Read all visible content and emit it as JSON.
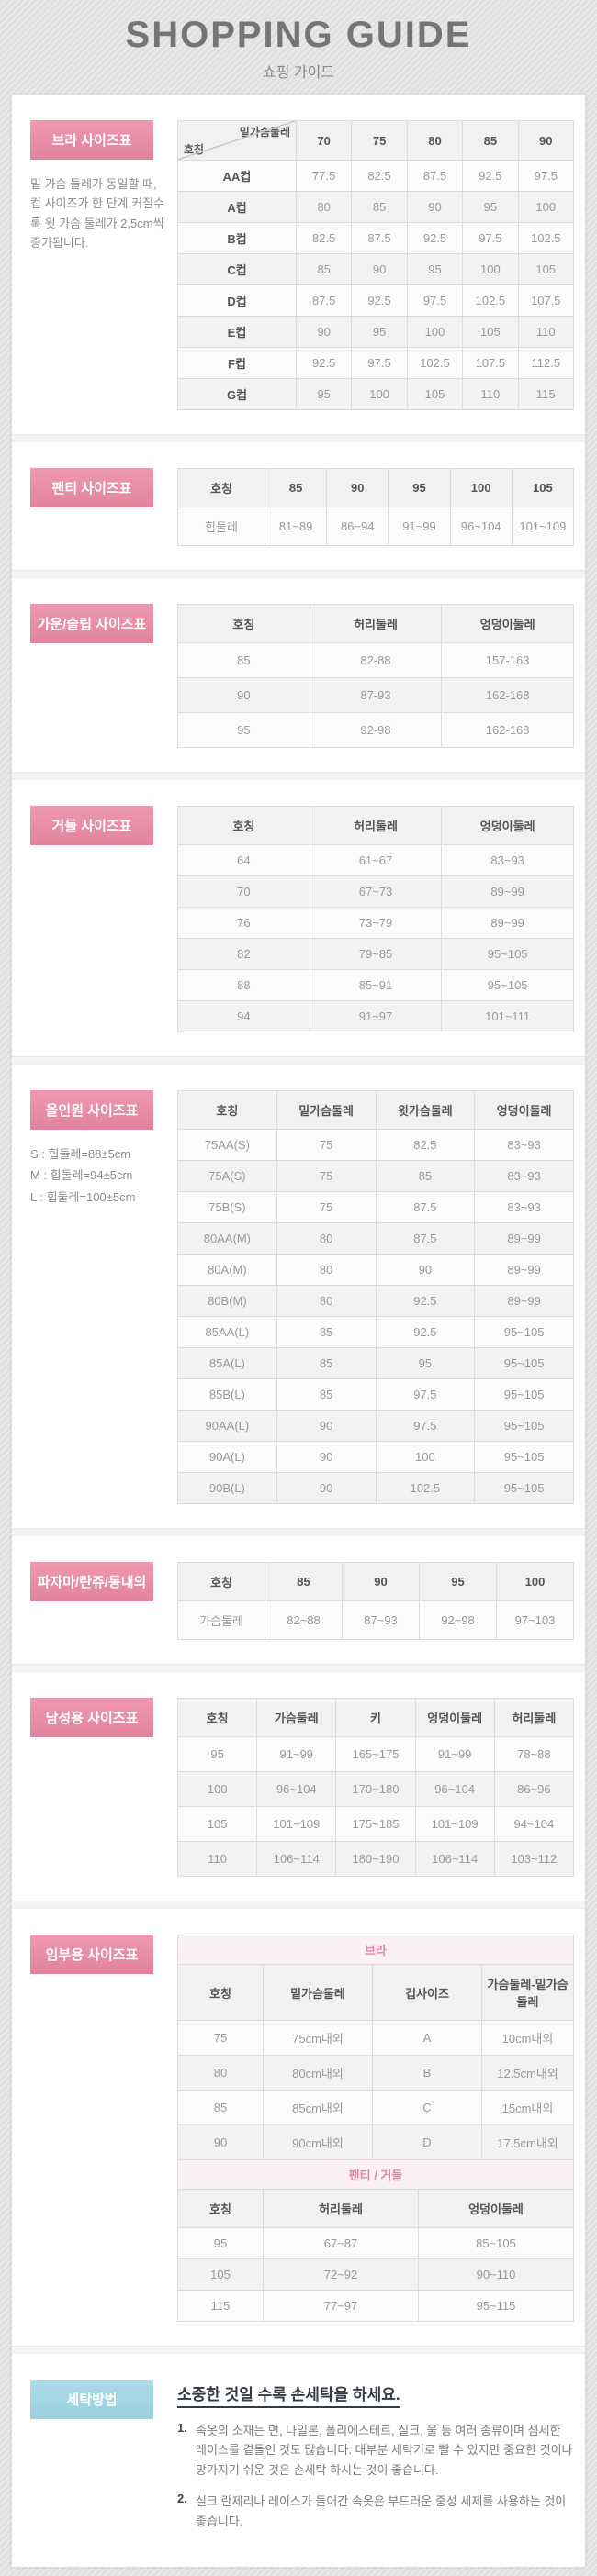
{
  "theme": {
    "accent_pink": "#e2829d",
    "accent_blue": "#9bd0df",
    "header_text": "#757575",
    "table_header_text": "#555555",
    "table_value_text": "#9a9a9a"
  },
  "header": {
    "title": "SHOPPING GUIDE",
    "subtitle": "쇼핑 가이드"
  },
  "sections": {
    "bra": {
      "label": "브라 사이즈표",
      "note": "밑 가슴 둘레가 동일할 때, 컵 사이즈가 한 단계 커질수록 윗 가슴 둘레가 2,5cm씩 증가됩니다.",
      "corner_top": "밑가슴둘레",
      "corner_bottom": "호칭",
      "columns": [
        "70",
        "75",
        "80",
        "85",
        "90"
      ],
      "rows": [
        [
          "AA컵",
          "77.5",
          "82.5",
          "87.5",
          "92.5",
          "97.5"
        ],
        [
          "A컵",
          "80",
          "85",
          "90",
          "95",
          "100"
        ],
        [
          "B컵",
          "82.5",
          "87.5",
          "92.5",
          "97.5",
          "102.5"
        ],
        [
          "C컵",
          "85",
          "90",
          "95",
          "100",
          "105"
        ],
        [
          "D컵",
          "87.5",
          "92.5",
          "97.5",
          "102.5",
          "107.5"
        ],
        [
          "E컵",
          "90",
          "95",
          "100",
          "105",
          "110"
        ],
        [
          "F컵",
          "92.5",
          "97.5",
          "102.5",
          "107.5",
          "112.5"
        ],
        [
          "G컵",
          "95",
          "100",
          "105",
          "110",
          "115"
        ]
      ]
    },
    "panty": {
      "label": "팬티 사이즈표",
      "headers": [
        "호칭",
        "85",
        "90",
        "95",
        "100",
        "105"
      ],
      "rows": [
        [
          "힙둘레",
          "81~89",
          "86~94",
          "91~99",
          "96~104",
          "101~109"
        ]
      ]
    },
    "gown": {
      "label": "가운/슬립 사이즈표",
      "headers": [
        "호칭",
        "허리둘레",
        "엉덩이둘레"
      ],
      "rows": [
        [
          "85",
          "82-88",
          "157-163"
        ],
        [
          "90",
          "87-93",
          "162-168"
        ],
        [
          "95",
          "92-98",
          "162-168"
        ]
      ]
    },
    "girdle": {
      "label": "거들 사이즈표",
      "headers": [
        "호칭",
        "허리둘레",
        "엉덩이둘레"
      ],
      "rows": [
        [
          "64",
          "61~67",
          "83~93"
        ],
        [
          "70",
          "67~73",
          "89~99"
        ],
        [
          "76",
          "73~79",
          "89~99"
        ],
        [
          "82",
          "79~85",
          "95~105"
        ],
        [
          "88",
          "85~91",
          "95~105"
        ],
        [
          "94",
          "91~97",
          "101~111"
        ]
      ]
    },
    "allinone": {
      "label": "올인원 사이즈표",
      "notes": [
        "S : 힙둘레=88±5cm",
        "M : 힙둘레=94±5cm",
        "L : 힙둘레=100±5cm"
      ],
      "headers": [
        "호칭",
        "밑가슴둘레",
        "윗가슴둘레",
        "엉덩이둘레"
      ],
      "rows": [
        [
          "75AA(S)",
          "75",
          "82.5",
          "83~93"
        ],
        [
          "75A(S)",
          "75",
          "85",
          "83~93"
        ],
        [
          "75B(S)",
          "75",
          "87.5",
          "83~93"
        ],
        [
          "80AA(M)",
          "80",
          "87.5",
          "89~99"
        ],
        [
          "80A(M)",
          "80",
          "90",
          "89~99"
        ],
        [
          "80B(M)",
          "80",
          "92.5",
          "89~99"
        ],
        [
          "85AA(L)",
          "85",
          "92.5",
          "95~105"
        ],
        [
          "85A(L)",
          "85",
          "95",
          "95~105"
        ],
        [
          "85B(L)",
          "85",
          "97.5",
          "95~105"
        ],
        [
          "90AA(L)",
          "90",
          "97.5",
          "95~105"
        ],
        [
          "90A(L)",
          "90",
          "100",
          "95~105"
        ],
        [
          "90B(L)",
          "90",
          "102.5",
          "95~105"
        ]
      ]
    },
    "pajama": {
      "label": "파자마/란쥬/동내의",
      "headers": [
        "호칭",
        "85",
        "90",
        "95",
        "100"
      ],
      "rows": [
        [
          "가슴둘레",
          "82~88",
          "87~93",
          "92~98",
          "97~103"
        ]
      ]
    },
    "mens": {
      "label": "남성용 사이즈표",
      "headers": [
        "호칭",
        "가슴둘레",
        "키",
        "엉덩이둘레",
        "허리둘레"
      ],
      "rows": [
        [
          "95",
          "91~99",
          "165~175",
          "91~99",
          "78~88"
        ],
        [
          "100",
          "96~104",
          "170~180",
          "96~104",
          "86~96"
        ],
        [
          "105",
          "101~109",
          "175~185",
          "101~109",
          "94~104"
        ],
        [
          "110",
          "106~114",
          "180~190",
          "106~114",
          "103~112"
        ]
      ]
    },
    "maternity": {
      "label": "임부용 사이즈표",
      "group1_title": "브라",
      "bra_headers": [
        "호칭",
        "밑가슴둘레",
        "컵사이즈",
        "가슴둘레-밑가슴둘레"
      ],
      "bra_rows": [
        [
          "75",
          "75cm내외",
          "A",
          "10cm내외"
        ],
        [
          "80",
          "80cm내외",
          "B",
          "12.5cm내외"
        ],
        [
          "85",
          "85cm내외",
          "C",
          "15cm내외"
        ],
        [
          "90",
          "90cm내외",
          "D",
          "17.5cm내외"
        ]
      ],
      "group2_title": "팬티 / 거들",
      "pg_headers": [
        "호칭",
        "허리둘레",
        "엉덩이둘레"
      ],
      "pg_rows": [
        [
          "95",
          "67~87",
          "85~105"
        ],
        [
          "105",
          "72~92",
          "90~110"
        ],
        [
          "115",
          "77~97",
          "95~115"
        ]
      ]
    },
    "wash": {
      "label": "세탁방법",
      "title": "소중한 것일 수록 손세탁을 하세요.",
      "items": [
        {
          "num": "1.",
          "text": "속옷의 소재는 면, 나일론, 폴리에스테르, 실크, 울 등 여러 종류이며 섬세한 레이스를 곁들인 것도 많습니다. 대부분 세탁기로 빨 수 있지만 중요한 것이나 망가지기 쉬운 것은 손세탁 하시는 것이 좋습니다."
        },
        {
          "num": "2.",
          "text": "실크 란제리나 레이스가 들어간 속옷은 부드러운 중성 세제를 사용하는 것이 좋습니다."
        }
      ]
    }
  }
}
